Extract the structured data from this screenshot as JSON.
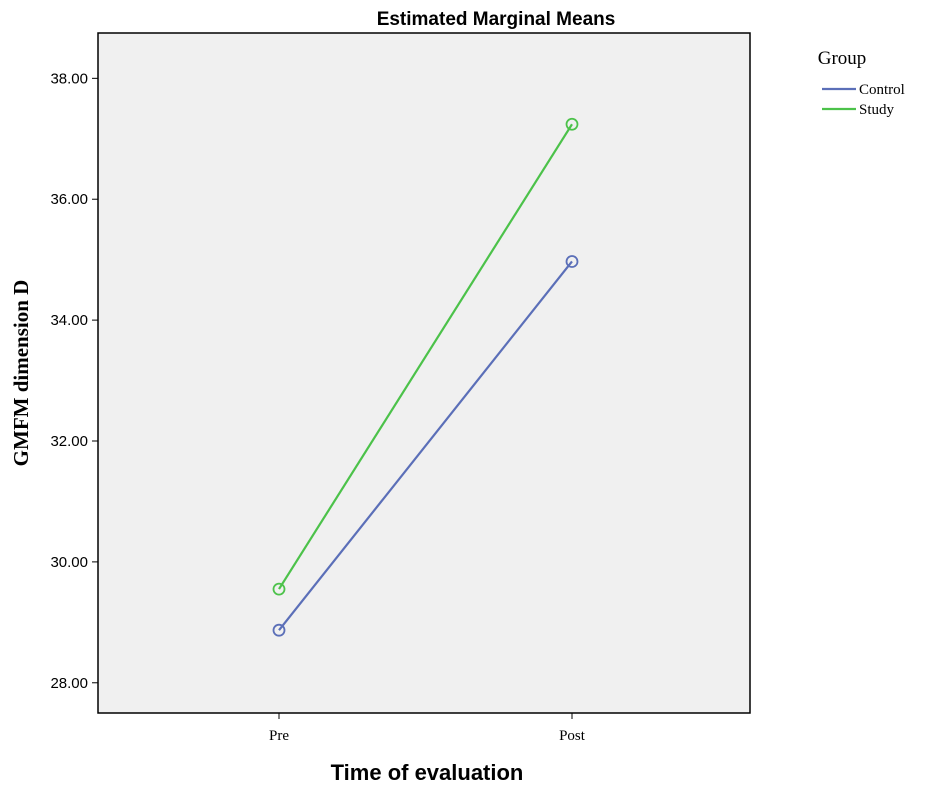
{
  "chart_data": {
    "type": "line",
    "title": "Estimated Marginal Means",
    "xlabel": "Time of evaluation",
    "ylabel": "GMFM dimension D",
    "categories": [
      "Pre",
      "Post"
    ],
    "ylim": [
      27.5,
      38.75
    ],
    "yticks": [
      "28.00",
      "30.00",
      "32.00",
      "34.00",
      "36.00",
      "38.00"
    ],
    "grid": false,
    "legend": {
      "title": "Group",
      "placement": "right"
    },
    "series": [
      {
        "name": "Control",
        "values": [
          28.87,
          34.97
        ],
        "color": "#5b6fb8"
      },
      {
        "name": "Study",
        "values": [
          29.55,
          37.24
        ],
        "color": "#4cc24a"
      }
    ],
    "colors": {
      "plot_background": "#f0f0f0"
    }
  }
}
